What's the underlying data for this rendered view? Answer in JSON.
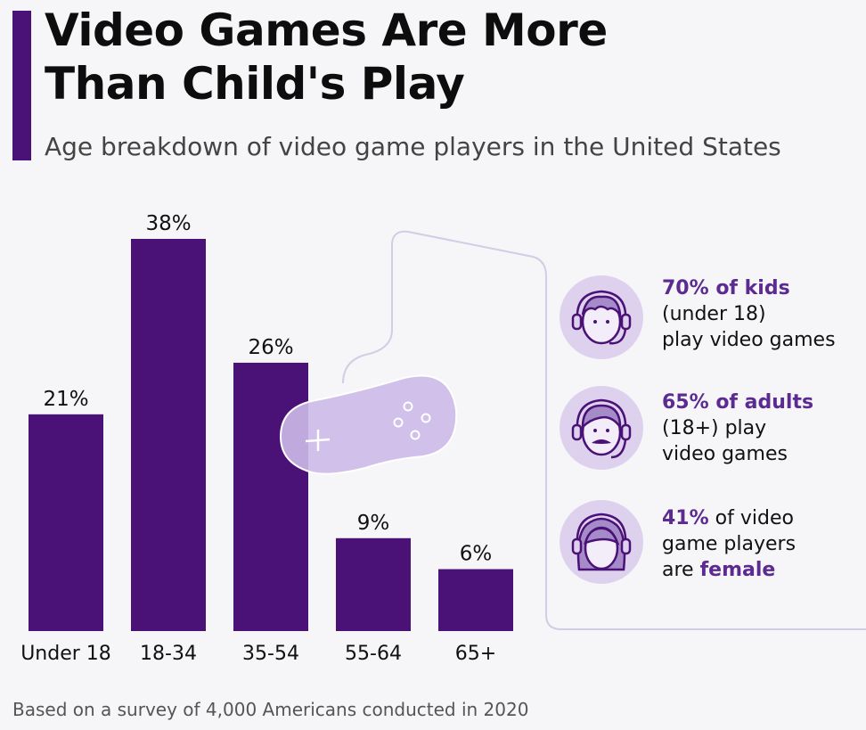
{
  "header": {
    "title_line1": "Video Games Are More",
    "title_line2": "Than Child's Play",
    "subtitle": "Age breakdown of video game players in the United States"
  },
  "chart_data": {
    "type": "bar",
    "categories": [
      "Under 18",
      "18-34",
      "35-54",
      "55-64",
      "65+"
    ],
    "values": [
      21,
      38,
      26,
      9,
      6
    ],
    "value_labels": [
      "21%",
      "38%",
      "26%",
      "9%",
      "6%"
    ],
    "unit": "%",
    "ylim": [
      0,
      38
    ],
    "grid": false,
    "bar_color": "#4a1177"
  },
  "stats": [
    {
      "highlight": "70% of kids",
      "line2": "(under 18)",
      "line3": "play video games",
      "icon": "kid-headset-icon"
    },
    {
      "highlight": "65% of adults",
      "line2": "(18+) play",
      "line3": "video games",
      "icon": "adult-headset-icon"
    },
    {
      "highlight": "41%",
      "rest1": " of video",
      "line2": "game players",
      "line3_pre": "are ",
      "line3_hl": "female",
      "icon": "female-headset-icon"
    }
  ],
  "colors": {
    "accent": "#4a1177",
    "highlight_text": "#5b2b91",
    "icon_bg": "#ddd1ee",
    "controller": "#cdbbe8"
  },
  "footer": {
    "source_note": "Based on a survey of 4,000 Americans conducted in 2020"
  }
}
